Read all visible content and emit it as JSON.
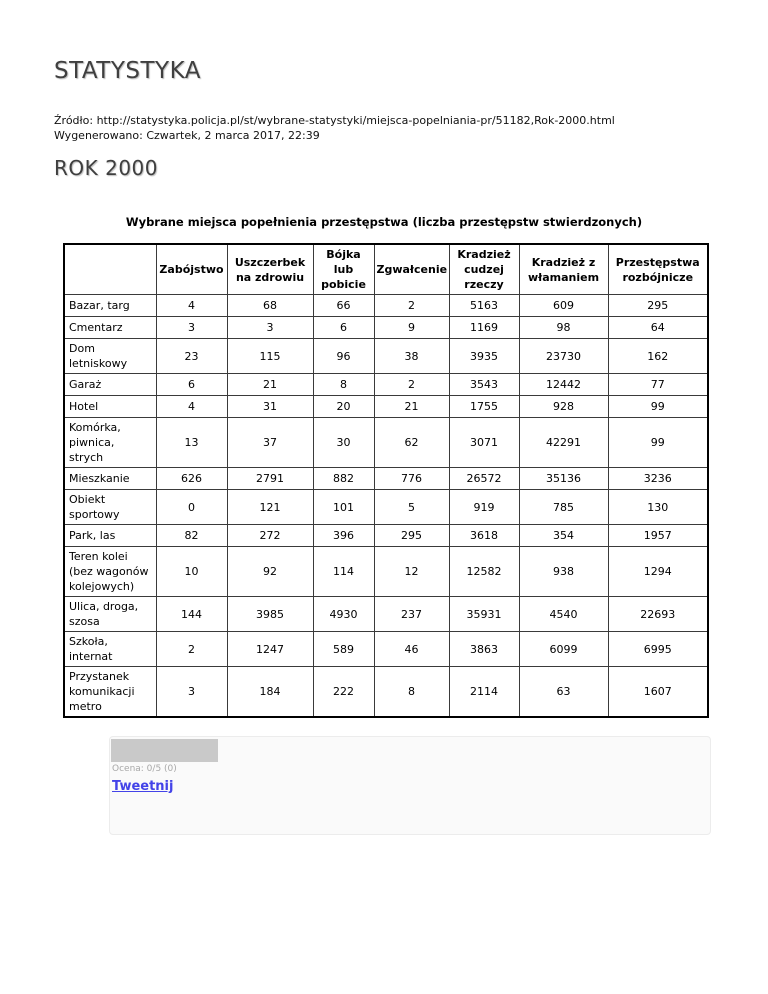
{
  "page": {
    "title": "STATYSTYKA",
    "source_line": "Źródło: http://statystyka.policja.pl/st/wybrane-statystyki/miejsca-popelniania-pr/51182,Rok-2000.html",
    "generated_line": "Wygenerowano: Czwartek, 2 marca 2017, 22:39",
    "section_title": "ROK 2000"
  },
  "chart_data": {
    "type": "table",
    "title": "Wybrane miejsca popełnienia przestępstwa (liczba przestępstw stwierdzonych)",
    "corner_header": "",
    "columns": [
      "Zabójstwo",
      "Uszczerbek na zdrowiu",
      "Bójka lub pobicie",
      "Zgwałcenie",
      "Kradzież cudzej rzeczy",
      "Kradzież z włamaniem",
      "Przestępstwa rozbójnicze"
    ],
    "rows": [
      {
        "label": "Bazar, targ",
        "values": [
          4,
          68,
          66,
          2,
          5163,
          609,
          295
        ]
      },
      {
        "label": "Cmentarz",
        "values": [
          3,
          3,
          6,
          9,
          1169,
          98,
          64
        ]
      },
      {
        "label": "Dom letniskowy",
        "values": [
          23,
          115,
          96,
          38,
          3935,
          23730,
          162
        ]
      },
      {
        "label": "Garaż",
        "values": [
          6,
          21,
          8,
          2,
          3543,
          12442,
          77
        ]
      },
      {
        "label": "Hotel",
        "values": [
          4,
          31,
          20,
          21,
          1755,
          928,
          99
        ]
      },
      {
        "label": "Komórka, piwnica, strych",
        "values": [
          13,
          37,
          30,
          62,
          3071,
          42291,
          99
        ]
      },
      {
        "label": "Mieszkanie",
        "values": [
          626,
          2791,
          882,
          776,
          26572,
          35136,
          3236
        ]
      },
      {
        "label": "Obiekt sportowy",
        "values": [
          0,
          121,
          101,
          5,
          919,
          785,
          130
        ]
      },
      {
        "label": "Park, las",
        "values": [
          82,
          272,
          396,
          295,
          3618,
          354,
          1957
        ]
      },
      {
        "label": "Teren kolei (bez wagonów kolejowych)",
        "values": [
          10,
          92,
          114,
          12,
          12582,
          938,
          1294
        ]
      },
      {
        "label": "Ulica, droga, szosa",
        "values": [
          144,
          3985,
          4930,
          237,
          35931,
          4540,
          22693
        ]
      },
      {
        "label": "Szkoła, internat",
        "values": [
          2,
          1247,
          589,
          46,
          3863,
          6099,
          6995
        ]
      },
      {
        "label": "Przystanek komunikacji metro",
        "values": [
          3,
          184,
          222,
          8,
          2114,
          63,
          1607
        ]
      }
    ]
  },
  "footer_widget": {
    "rating_label": "Ocena: 0/5 (0)",
    "tweet_label": "Tweetnij",
    "link_color": "#4343e8",
    "placeholder_color": "#c9c9c9"
  }
}
